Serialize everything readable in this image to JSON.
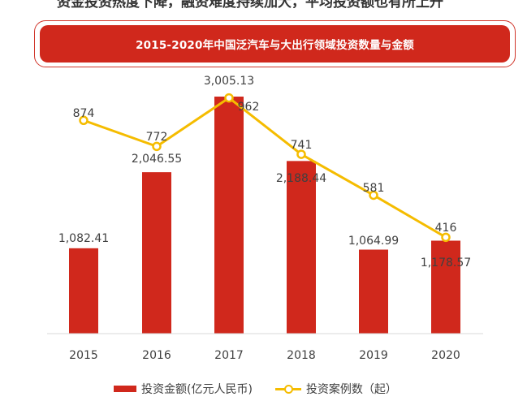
{
  "header": {
    "top_text": "资金投资热度下降，融资难度持续加大，平均投资额也有所上升"
  },
  "chart_data": {
    "type": "bar",
    "title": "2015-2020年中国泛汽车与大出行领域投资数量与金额",
    "categories": [
      "2015",
      "2016",
      "2017",
      "2018",
      "2019",
      "2020"
    ],
    "series": [
      {
        "name": "投资金额(亿元人民币)",
        "type": "bar",
        "color": "#d0281c",
        "values": [
          1082.41,
          2046.55,
          3005.13,
          2188.44,
          1064.99,
          1178.57
        ],
        "labels": [
          "1,082.41",
          "2,046.55",
          "3,005.13",
          "2,188.44",
          "1,064.99",
          "1,178.57"
        ]
      },
      {
        "name": "投资案例数（起）",
        "type": "line",
        "color": "#f5bc00",
        "values": [
          874,
          772,
          962,
          741,
          581,
          416
        ],
        "labels": [
          "874",
          "772",
          "962",
          "741",
          "581",
          "416"
        ]
      }
    ],
    "legend": "bottom",
    "grid": false
  }
}
